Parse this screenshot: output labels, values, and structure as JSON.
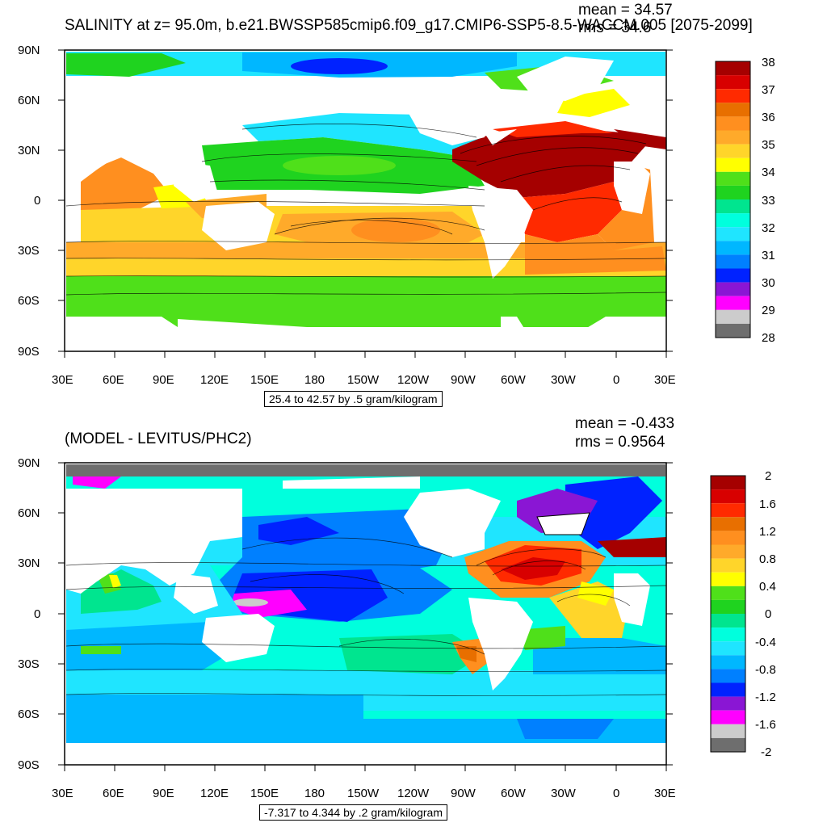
{
  "top_panel": {
    "title": "SALINITY at z=  95.0m, b.e21.BWSSP585cmip6.f09_g17.CMIP6-SSP5-8.5-WACCM.005 [2075-2099]",
    "mean_text": "mean = 34.57",
    "rms_text": "rms = 34.6",
    "contour_note": "25.4 to 42.57 by .5 gram/kilogram",
    "colorbar": {
      "labels": [
        "38",
        "37",
        "36",
        "35",
        "34",
        "33",
        "32",
        "31",
        "30",
        "29",
        "28"
      ],
      "colors": [
        "#a50000",
        "#d80000",
        "#ff2a00",
        "#e86f00",
        "#ff8f1f",
        "#ffaa2a",
        "#ffd52a",
        "#ffff00",
        "#4fe01a",
        "#1fd31f",
        "#00e58f",
        "#00ffdd",
        "#1fe5ff",
        "#00b7ff",
        "#0080ff",
        "#0022ff",
        "#8a16d4",
        "#ff00ff",
        "#cccccc",
        "#6e6e6e"
      ]
    }
  },
  "bottom_panel": {
    "title": "(MODEL - LEVITUS/PHC2)",
    "mean_text": "mean = -0.433",
    "rms_text": "rms = 0.9564",
    "contour_note": "-7.317 to 4.344 by .2 gram/kilogram",
    "colorbar": {
      "labels": [
        "2",
        "1.6",
        "1.2",
        "0.8",
        "0.4",
        "0",
        "-0.4",
        "-0.8",
        "-1.2",
        "-1.6",
        "-2"
      ],
      "colors": [
        "#a50000",
        "#d80000",
        "#ff2a00",
        "#e86f00",
        "#ff8f1f",
        "#ffaa2a",
        "#ffd52a",
        "#ffff00",
        "#4fe01a",
        "#1fd31f",
        "#00e58f",
        "#00ffdd",
        "#1fe5ff",
        "#00b7ff",
        "#0080ff",
        "#0022ff",
        "#8a16d4",
        "#ff00ff",
        "#cccccc",
        "#6e6e6e"
      ]
    }
  },
  "axes": {
    "lat_labels": [
      "90N",
      "60N",
      "30N",
      "0",
      "30S",
      "60S",
      "90S"
    ],
    "lon_labels": [
      "30E",
      "60E",
      "90E",
      "120E",
      "150E",
      "180",
      "150W",
      "120W",
      "90W",
      "60W",
      "30W",
      "0",
      "30E"
    ]
  }
}
